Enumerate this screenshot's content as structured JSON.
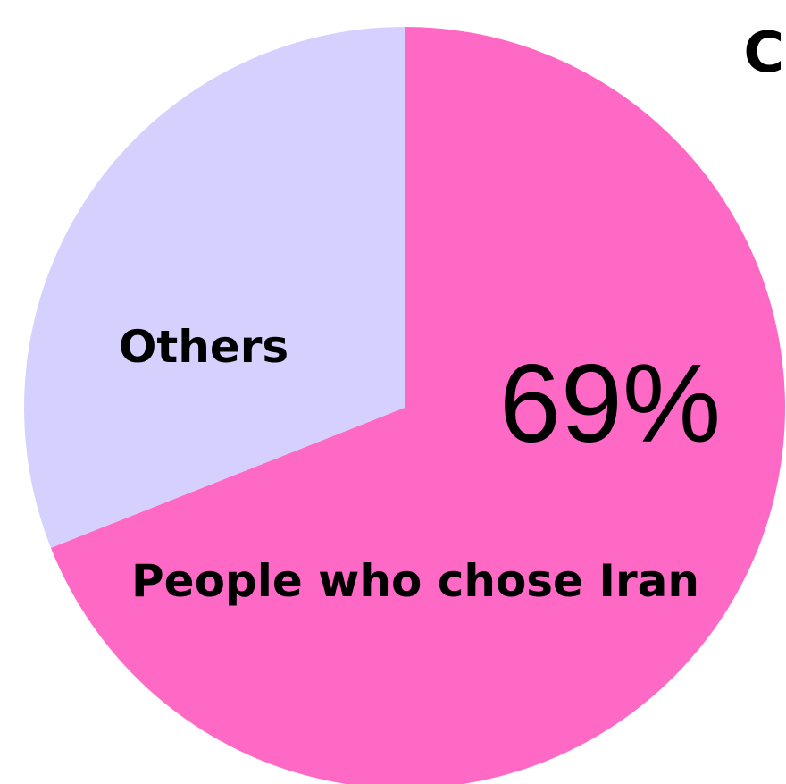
{
  "panel_letter": "C",
  "chart_data": {
    "type": "pie",
    "slices": [
      {
        "label": "People who chose Iran",
        "value": 69,
        "value_label": "69%",
        "color": "#ff69c6"
      },
      {
        "label": "Others",
        "value": 31,
        "value_label": "",
        "color": "#d6d0ff"
      }
    ],
    "text_color": "#000000",
    "background": "#ffffff"
  }
}
